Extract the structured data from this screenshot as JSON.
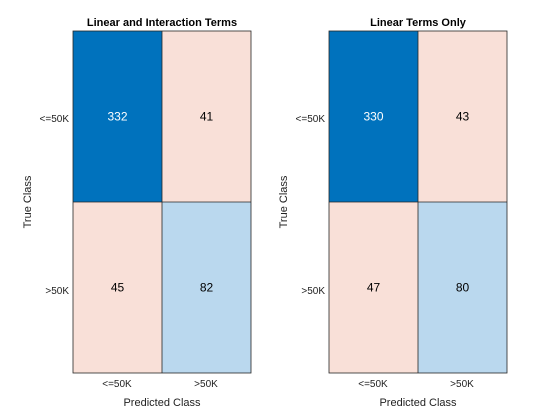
{
  "chart_data": [
    {
      "type": "heatmap",
      "title": "Linear and Interaction Terms",
      "xlabel": "Predicted Class",
      "ylabel": "True Class",
      "row_labels": [
        "<=50K",
        ">50K"
      ],
      "col_labels": [
        "<=50K",
        ">50K"
      ],
      "values": [
        [
          332,
          41
        ],
        [
          45,
          82
        ]
      ],
      "cell_colors": [
        [
          "#0072BD",
          "#F9E0D8"
        ],
        [
          "#F9E0D8",
          "#BAD8EE"
        ]
      ],
      "text_colors": [
        [
          "#ffffff",
          "#000000"
        ],
        [
          "#000000",
          "#000000"
        ]
      ]
    },
    {
      "type": "heatmap",
      "title": "Linear Terms Only",
      "xlabel": "Predicted Class",
      "ylabel": "True Class",
      "row_labels": [
        "<=50K",
        ">50K"
      ],
      "col_labels": [
        "<=50K",
        ">50K"
      ],
      "values": [
        [
          330,
          43
        ],
        [
          47,
          80
        ]
      ],
      "cell_colors": [
        [
          "#0072BD",
          "#F9E0D8"
        ],
        [
          "#F9E0D8",
          "#BAD8EE"
        ]
      ],
      "text_colors": [
        [
          "#ffffff",
          "#000000"
        ],
        [
          "#000000",
          "#000000"
        ]
      ]
    }
  ]
}
